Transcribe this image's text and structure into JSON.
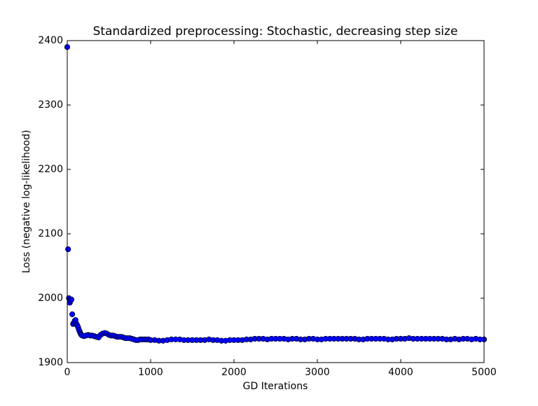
{
  "chart_data": {
    "type": "scatter",
    "title": "Standardized preprocessing: Stochastic, decreasing step size",
    "x_label": "GD Iterations",
    "y_label": "Loss (negative log-likelihood)",
    "color": "#0000ff",
    "xlim": [
      0,
      5000
    ],
    "xticks": [
      0,
      1000,
      2000,
      3000,
      4000,
      5000
    ],
    "ylim": [
      1900,
      2400
    ],
    "yticks": [
      1900,
      2000,
      2100,
      2200,
      2300,
      2400
    ],
    "x": [
      0,
      10,
      20,
      30,
      40,
      50,
      60,
      70,
      80,
      90,
      100,
      110,
      120,
      130,
      140,
      150,
      160,
      170,
      180,
      200,
      225,
      250,
      275,
      300,
      325,
      350,
      375,
      400,
      425,
      450,
      475,
      500,
      525,
      550,
      575,
      600,
      625,
      650,
      675,
      700,
      725,
      750,
      775,
      800,
      825,
      850,
      875,
      900,
      925,
      950,
      975,
      1000,
      1050,
      1100,
      1150,
      1200,
      1250,
      1300,
      1350,
      1400,
      1450,
      1500,
      1550,
      1600,
      1650,
      1700,
      1750,
      1800,
      1850,
      1900,
      1950,
      2000,
      2050,
      2100,
      2150,
      2200,
      2250,
      2300,
      2350,
      2400,
      2450,
      2500,
      2550,
      2600,
      2650,
      2700,
      2750,
      2800,
      2850,
      2900,
      2950,
      3000,
      3050,
      3100,
      3150,
      3200,
      3250,
      3300,
      3350,
      3400,
      3450,
      3500,
      3550,
      3600,
      3650,
      3700,
      3750,
      3800,
      3850,
      3900,
      3950,
      4000,
      4050,
      4100,
      4150,
      4200,
      4250,
      4300,
      4350,
      4400,
      4450,
      4500,
      4550,
      4600,
      4650,
      4700,
      4750,
      4800,
      4850,
      4900,
      4950,
      5000
    ],
    "values": [
      2390,
      2076,
      2000,
      1993,
      1996,
      1998,
      1975,
      1960,
      1962,
      1965,
      1966,
      1960,
      1958,
      1955,
      1951,
      1948,
      1945,
      1943,
      1942,
      1941,
      1942,
      1943,
      1942,
      1942,
      1941,
      1940,
      1939,
      1943,
      1945,
      1946,
      1945,
      1943,
      1942,
      1942,
      1941,
      1940,
      1940,
      1940,
      1939,
      1938,
      1938,
      1938,
      1937,
      1936,
      1935,
      1935,
      1936,
      1936,
      1936,
      1936,
      1936,
      1935,
      1935,
      1934,
      1934,
      1935,
      1936,
      1936,
      1936,
      1935,
      1935,
      1935,
      1935,
      1935,
      1935,
      1936,
      1935,
      1935,
      1934,
      1934,
      1935,
      1935,
      1935,
      1935,
      1936,
      1936,
      1937,
      1937,
      1937,
      1936,
      1937,
      1937,
      1937,
      1937,
      1936,
      1937,
      1937,
      1936,
      1936,
      1937,
      1937,
      1936,
      1936,
      1937,
      1937,
      1937,
      1937,
      1937,
      1937,
      1937,
      1937,
      1936,
      1936,
      1937,
      1937,
      1937,
      1937,
      1937,
      1936,
      1936,
      1937,
      1937,
      1937,
      1938,
      1937,
      1937,
      1937,
      1937,
      1937,
      1937,
      1937,
      1937,
      1936,
      1936,
      1937,
      1936,
      1937,
      1937,
      1936,
      1937,
      1936,
      1936
    ]
  }
}
